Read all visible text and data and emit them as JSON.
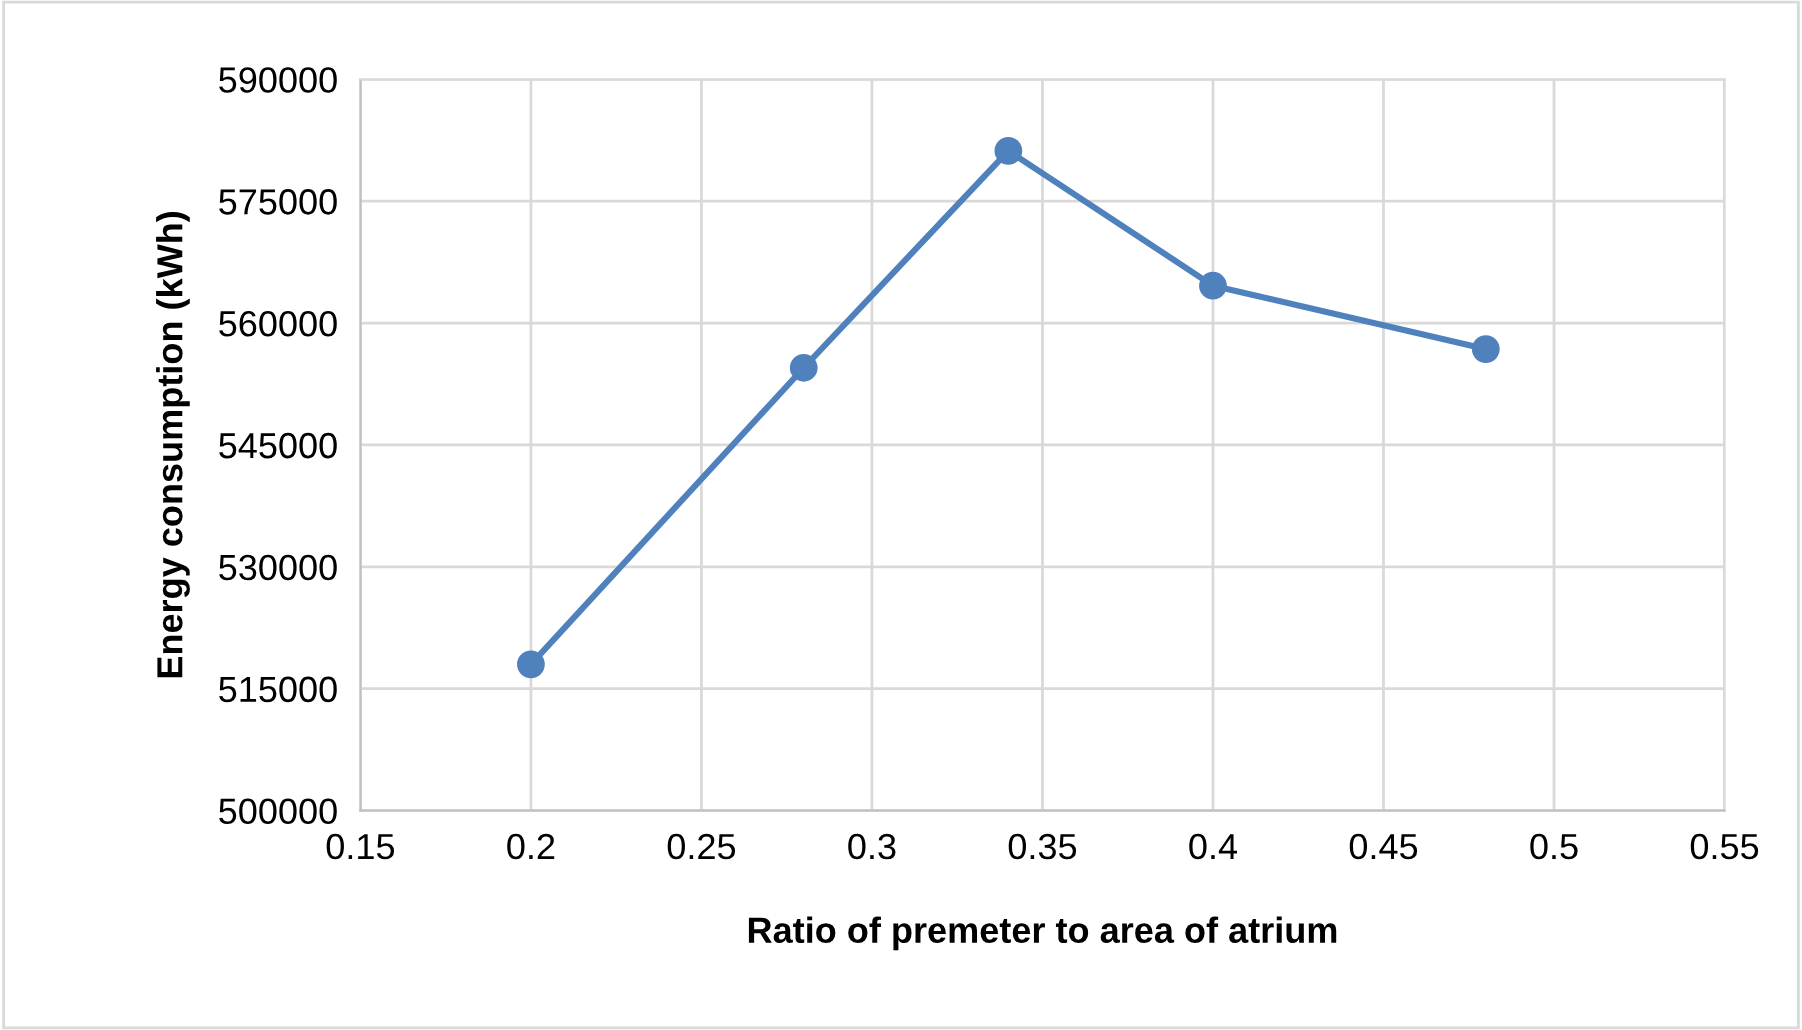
{
  "chart_data": {
    "type": "line",
    "xlabel": "Ratio of premeter to area of atrium",
    "ylabel": "Energy consumption (kWh)",
    "x": [
      0.2,
      0.28,
      0.34,
      0.4,
      0.48
    ],
    "series": [
      {
        "color": "#4f81bd",
        "values": [
          518000,
          554500,
          581200,
          564600,
          556800
        ]
      }
    ],
    "xlim": [
      0.15,
      0.55
    ],
    "xticks": [
      0.15,
      0.2,
      0.25,
      0.3,
      0.35,
      0.4,
      0.45,
      0.5,
      0.55
    ],
    "ylim": [
      500000,
      590000
    ],
    "yticks": [
      500000,
      515000,
      530000,
      545000,
      560000,
      575000,
      590000
    ],
    "grid": true,
    "marker": "circle",
    "line_style": "solid"
  }
}
